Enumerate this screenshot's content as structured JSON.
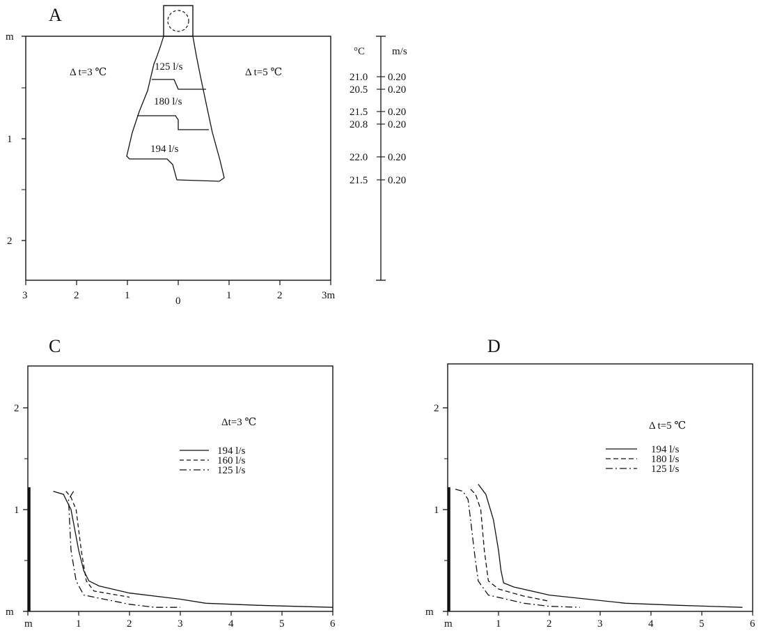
{
  "panel_a": {
    "letter": "A",
    "left_label": "Δ t=3 ℃",
    "right_label": "Δ t=5 ℃",
    "y_ticks": [
      "m",
      "1",
      "2"
    ],
    "x_ticks": [
      "3",
      "2",
      "1",
      "0",
      "1",
      "2",
      "3m"
    ],
    "zones": [
      {
        "label": "125 l/s",
        "flow": 125
      },
      {
        "label": "180 l/s",
        "flow": 180
      },
      {
        "label": "194 l/s",
        "flow": 194
      }
    ]
  },
  "scale_bar": {
    "temp_header": "°C",
    "vel_header": "m/s",
    "rows": [
      {
        "temp": "21.0",
        "vel": "0.20"
      },
      {
        "temp": "20.5",
        "vel": "0.20"
      },
      {
        "temp": "21.5",
        "vel": "0.20"
      },
      {
        "temp": "20.8",
        "vel": "0.20"
      },
      {
        "temp": "22.0",
        "vel": "0.20"
      },
      {
        "temp": "21.5",
        "vel": "0.20"
      }
    ]
  },
  "panel_c": {
    "letter": "C",
    "legend_title": "Δt=3 ℃",
    "legend": [
      "194  l/s",
      "160  l/s",
      "125  l/s"
    ]
  },
  "panel_d": {
    "letter": "D",
    "legend_title": "Δ t=5 ℃",
    "legend": [
      "194  l/s",
      "180  l/s",
      "125  l/s"
    ]
  },
  "chart_data": [
    {
      "type": "line",
      "panel": "C",
      "title": "Δt=3 ℃",
      "xlim": [
        0,
        6
      ],
      "ylim": [
        0,
        2.4
      ],
      "x_ticks": [
        "m",
        "1",
        "2",
        "3",
        "4",
        "5",
        "6"
      ],
      "y_ticks": [
        "m",
        "1",
        "2"
      ],
      "series": [
        {
          "name": "194  l/s",
          "style": "solid",
          "x": [
            0.5,
            0.7,
            0.85,
            1.0,
            1.1,
            1.2,
            1.4,
            2.0,
            3.0,
            3.5,
            4.5,
            6.0
          ],
          "y": [
            1.18,
            1.15,
            1.0,
            0.6,
            0.4,
            0.3,
            0.25,
            0.18,
            0.12,
            0.08,
            0.06,
            0.04
          ]
        },
        {
          "name": "160  l/s",
          "style": "dashed",
          "x": [
            0.75,
            0.85,
            0.95,
            1.05,
            1.15,
            1.3,
            2.0
          ],
          "y": [
            1.18,
            1.12,
            1.0,
            0.6,
            0.3,
            0.2,
            0.14
          ]
        },
        {
          "name": "125  l/s",
          "style": "dashdot",
          "x": [
            0.9,
            0.8,
            0.85,
            0.95,
            1.1,
            2.0,
            2.5,
            3.0
          ],
          "y": [
            1.18,
            1.1,
            0.6,
            0.3,
            0.16,
            0.07,
            0.04,
            0.04
          ]
        }
      ]
    },
    {
      "type": "line",
      "panel": "D",
      "title": "Δ t=5 ℃",
      "xlim": [
        0,
        6
      ],
      "ylim": [
        0,
        2.4
      ],
      "x_ticks": [
        "m",
        "1",
        "2",
        "3",
        "4",
        "5",
        "6"
      ],
      "y_ticks": [
        "m",
        "1",
        "2"
      ],
      "series": [
        {
          "name": "194  l/s",
          "style": "solid",
          "x": [
            0.6,
            0.75,
            0.9,
            1.0,
            1.05,
            1.1,
            1.3,
            2.0,
            3.5,
            4.5,
            5.8
          ],
          "y": [
            1.25,
            1.15,
            0.9,
            0.6,
            0.4,
            0.28,
            0.24,
            0.16,
            0.08,
            0.06,
            0.04
          ]
        },
        {
          "name": "180  l/s",
          "style": "dashed",
          "x": [
            0.45,
            0.55,
            0.65,
            0.72,
            0.8,
            1.0,
            1.5,
            2.0
          ],
          "y": [
            1.2,
            1.15,
            1.0,
            0.6,
            0.3,
            0.22,
            0.15,
            0.1
          ]
        },
        {
          "name": "125  l/s",
          "style": "dashdot",
          "x": [
            0.15,
            0.3,
            0.4,
            0.45,
            0.52,
            0.6,
            0.8,
            1.5,
            2.0,
            2.6
          ],
          "y": [
            1.2,
            1.18,
            1.1,
            0.9,
            0.6,
            0.3,
            0.16,
            0.08,
            0.05,
            0.04
          ]
        }
      ]
    }
  ]
}
